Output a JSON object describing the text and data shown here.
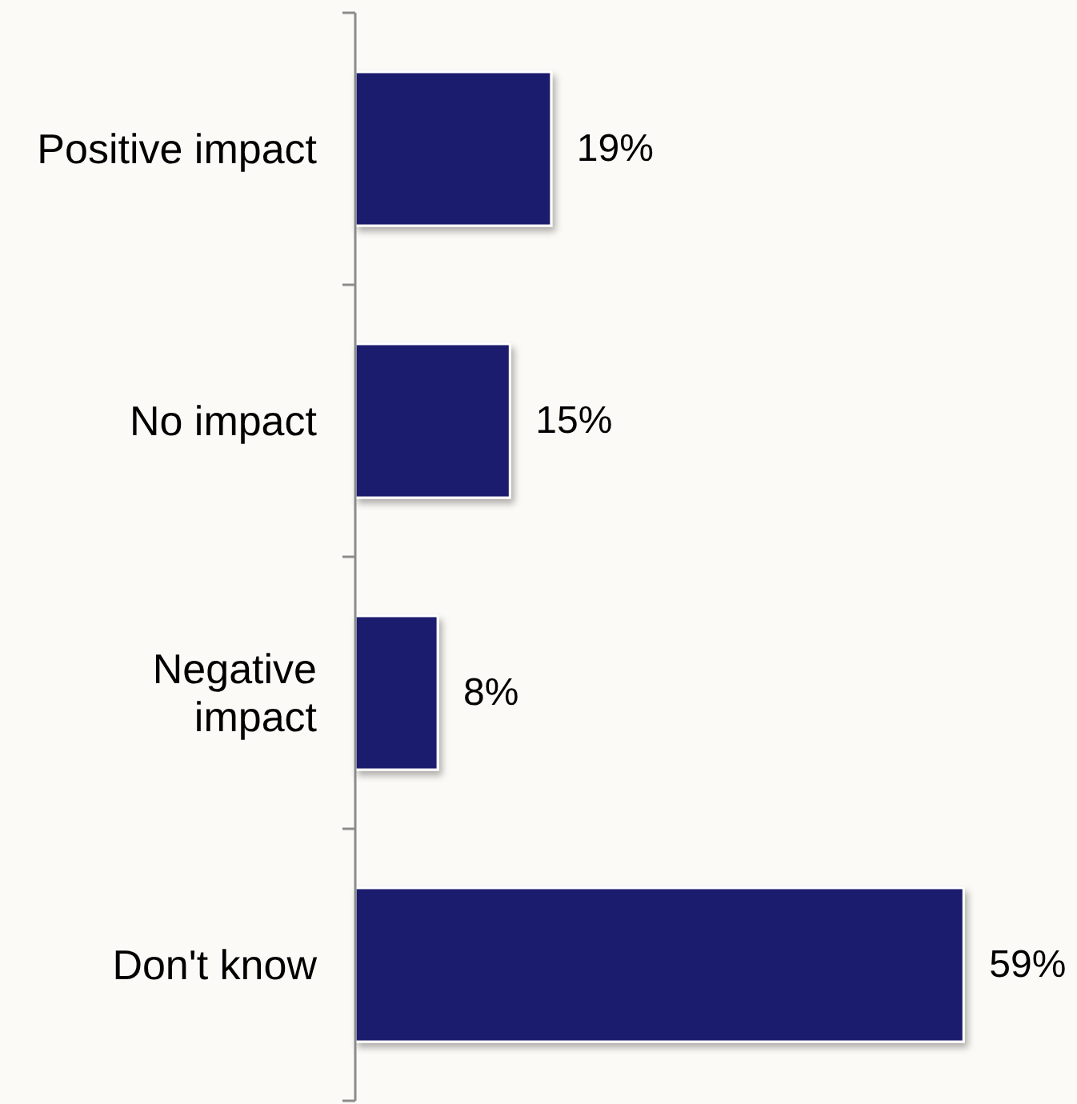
{
  "chart_data": {
    "type": "bar",
    "orientation": "horizontal",
    "categories": [
      "Positive impact",
      "No impact",
      "Negative impact",
      "Don't know"
    ],
    "values": [
      19,
      15,
      8,
      59
    ],
    "color": "#1b1a6e",
    "xlim": [
      0,
      70
    ],
    "value_labels": [
      "19%",
      "15%",
      "8%",
      "59%"
    ],
    "tick_labels": "y"
  }
}
